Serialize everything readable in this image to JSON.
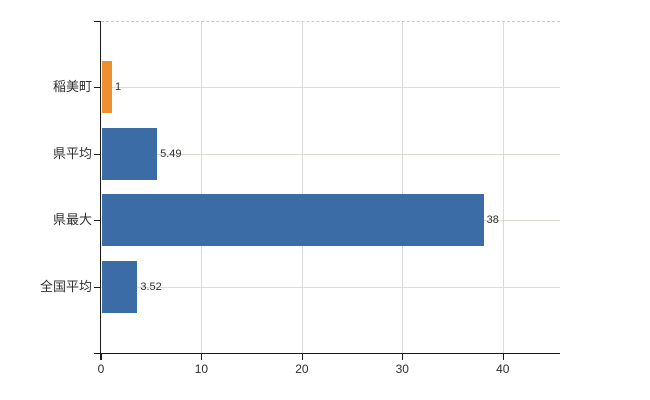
{
  "chart_data": {
    "type": "bar",
    "orientation": "horizontal",
    "title": "",
    "xlabel": "",
    "ylabel": "",
    "categories": [
      "稲美町",
      "県平均",
      "県最大",
      "全国平均"
    ],
    "values": [
      1,
      5.49,
      38,
      3.52
    ],
    "value_labels": [
      "1",
      "5.49",
      "38",
      "3.52"
    ],
    "bar_colors": [
      "#ee8f31",
      "#3b6ca5",
      "#3b6ca5",
      "#3b6ca5"
    ],
    "xlim": [
      0,
      45.7
    ],
    "x_tick_values": [
      0,
      10,
      20,
      30,
      40
    ],
    "x_ticks": [
      "0",
      "10",
      "20",
      "30",
      "40"
    ],
    "grid": "on",
    "legend": "none",
    "plot_border_top": "dashed"
  },
  "colors": {
    "bar_blue": "#3b6ca5",
    "bar_orange": "#ee8f31",
    "gridline": "#d9d9d9",
    "axis": "#1a1a1a",
    "text": "#2e2e2e",
    "background": "#ffffff"
  }
}
